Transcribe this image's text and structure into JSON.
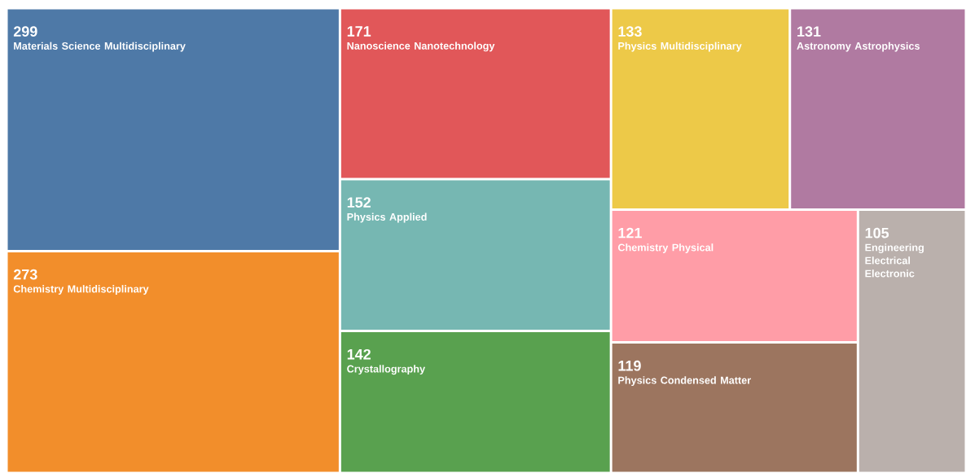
{
  "chart_data": {
    "type": "other",
    "categories": [
      "Materials Science Multidisciplinary",
      "Chemistry Multidisciplinary",
      "Nanoscience Nanotechnology",
      "Physics Applied",
      "Crystallography",
      "Physics Multidisciplinary",
      "Astronomy Astrophysics",
      "Chemistry Physical",
      "Physics Condensed Matter",
      "Engineering Electrical Electronic"
    ],
    "values": [
      299,
      273,
      171,
      152,
      142,
      133,
      131,
      121,
      119,
      105
    ],
    "colors": [
      "#4e79a7",
      "#f28e2b",
      "#e15759",
      "#76b7b2",
      "#59a14f",
      "#edc948",
      "#b07aa1",
      "#ff9da7",
      "#9c755f",
      "#bab0ac"
    ],
    "data_labels": true
  }
}
